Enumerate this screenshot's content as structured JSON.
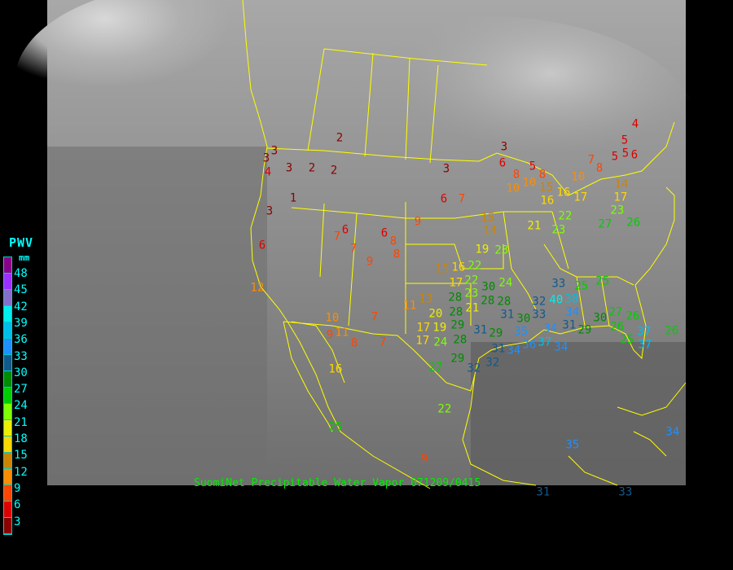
{
  "legend": {
    "title": "PWV",
    "unit": "mm",
    "labels": [
      "48",
      "45",
      "42",
      "39",
      "36",
      "33",
      "30",
      "27",
      "24",
      "21",
      "18",
      "15",
      "12",
      "9",
      "6",
      "3"
    ],
    "colors": [
      "#8b008b",
      "#9b30ff",
      "#8470cc",
      "#00eeee",
      "#00bfe8",
      "#1e90ff",
      "#105a8b",
      "#008b00",
      "#00cd00",
      "#7fff00",
      "#eeee00",
      "#ffd700",
      "#cd8500",
      "#ff8c00",
      "#ff4500",
      "#dd0000",
      "#8b0000"
    ]
  },
  "caption": "SuomiNet Precipitable Water Vapor 071209/0415",
  "map": {
    "border_color": "#ffff00",
    "stations": [
      "2",
      "3",
      "3",
      "3",
      "2",
      "2",
      "4",
      "1",
      "3",
      "6",
      "6",
      "6",
      "8",
      "8",
      "7",
      "9",
      "7",
      "3",
      "6",
      "7",
      "9",
      "3",
      "6",
      "5",
      "8",
      "8",
      "10",
      "10",
      "15",
      "16",
      "16",
      "17",
      "10",
      "7",
      "8",
      "5",
      "5",
      "6",
      "4",
      "5",
      "14",
      "17",
      "23",
      "26",
      "27",
      "21",
      "23",
      "22",
      "15",
      "14",
      "15",
      "16",
      "22",
      "22",
      "17",
      "23",
      "30",
      "28",
      "28",
      "28",
      "31",
      "24",
      "23",
      "19",
      "21",
      "20",
      "11",
      "13",
      "17",
      "19",
      "17",
      "28",
      "24",
      "29",
      "31",
      "29",
      "28",
      "31",
      "34",
      "35",
      "30",
      "36",
      "37",
      "34",
      "34",
      "32",
      "32",
      "29",
      "27",
      "33",
      "32",
      "33",
      "40",
      "38",
      "34",
      "31",
      "25",
      "25",
      "27",
      "26",
      "26",
      "25",
      "37",
      "37",
      "30",
      "29",
      "12",
      "10",
      "9",
      "11",
      "7",
      "7",
      "8",
      "16",
      "25",
      "22",
      "9",
      "26",
      "34",
      "35",
      "31",
      "33"
    ]
  }
}
